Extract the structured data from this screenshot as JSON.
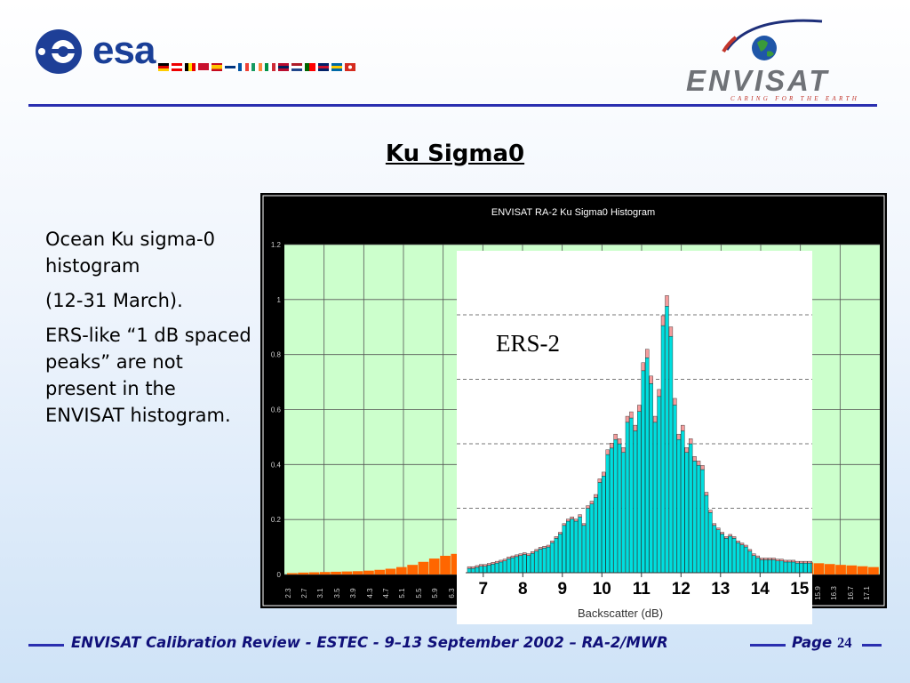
{
  "header": {
    "esa_logo_text": "esa",
    "envisat_logo_text": "ENVISAT",
    "envisat_tagline": "CARING FOR THE EARTH",
    "flags": [
      "germany-flag",
      "austria-flag",
      "belgium-flag",
      "denmark-flag",
      "spain-flag",
      "finland-flag",
      "france-flag",
      "ireland-flag",
      "italy-flag",
      "norway-flag",
      "netherlands-flag",
      "portugal-flag",
      "uk-flag",
      "sweden-flag",
      "switzerland-flag"
    ]
  },
  "slide": {
    "title": "Ku Sigma0",
    "paragraphs": [
      "Ocean Ku sigma-0 histogram",
      "(12-31 March).",
      "ERS-like “1 dB spaced peaks” are not present in the ENVISAT histogram."
    ]
  },
  "chart_data": [
    {
      "type": "bar",
      "title": "ENVISAT RA-2 Ku Sigma0 Histogram",
      "yticks": [
        "1.2",
        "1",
        "0.8",
        "0.6",
        "0.4",
        "0.2",
        "0"
      ],
      "ylim": [
        0,
        1.2
      ],
      "xtick_labels": [
        "2.3",
        "2.7",
        "3.1",
        "3.5",
        "3.9",
        "4.3",
        "4.7",
        "5.1",
        "5.5",
        "5.9",
        "6.3",
        "15.9",
        "16.3",
        "16.7",
        "17.1"
      ],
      "series": [
        {
          "bars_left": [
            0.005,
            0.007,
            0.008,
            0.009,
            0.01,
            0.011,
            0.012,
            0.014,
            0.017,
            0.021,
            0.027,
            0.035,
            0.046,
            0.058,
            0.068,
            0.075
          ],
          "bars_right": [
            0.085,
            0.08,
            0.076,
            0.072,
            0.068,
            0.064,
            0.061,
            0.057,
            0.053,
            0.05,
            0.047,
            0.044,
            0.041,
            0.038,
            0.035,
            0.033,
            0.03,
            0.027
          ]
        }
      ],
      "colors": {
        "background": "#000000",
        "plot": "#ccffcc",
        "bar": "#ff6600"
      },
      "grid": true
    },
    {
      "type": "bar",
      "label": "ERS-2",
      "xlabel": "Backscatter (dB)",
      "xticks": [
        "7",
        "8",
        "9",
        "10",
        "11",
        "12",
        "13",
        "14",
        "15"
      ],
      "xlim": [
        6.6,
        15.5
      ],
      "ylim": [
        0,
        1.2
      ],
      "x_start": 6.6,
      "x_step": 0.1,
      "values": [
        0.02,
        0.02,
        0.025,
        0.03,
        0.03,
        0.035,
        0.04,
        0.045,
        0.05,
        0.055,
        0.065,
        0.07,
        0.075,
        0.08,
        0.085,
        0.08,
        0.09,
        0.1,
        0.11,
        0.115,
        0.12,
        0.14,
        0.16,
        0.18,
        0.22,
        0.24,
        0.25,
        0.24,
        0.26,
        0.22,
        0.3,
        0.32,
        0.35,
        0.42,
        0.45,
        0.55,
        0.58,
        0.62,
        0.6,
        0.56,
        0.7,
        0.72,
        0.66,
        0.75,
        0.94,
        1.0,
        0.88,
        0.7,
        0.82,
        1.15,
        1.24,
        1.1,
        0.78,
        0.62,
        0.66,
        0.56,
        0.6,
        0.52,
        0.5,
        0.48,
        0.36,
        0.28,
        0.22,
        0.2,
        0.18,
        0.16,
        0.17,
        0.16,
        0.14,
        0.13,
        0.12,
        0.1,
        0.08,
        0.07,
        0.06,
        0.06,
        0.06,
        0.06,
        0.055,
        0.055,
        0.05,
        0.05,
        0.05,
        0.045,
        0.045,
        0.045,
        0.045,
        0.045,
        0.04
      ],
      "gridlines_y": [
        0.3,
        0.6,
        0.9,
        1.2
      ],
      "colors": {
        "bar": "#00dede",
        "bar_edge": "#1a4a4a",
        "cap": "#f49c9c"
      }
    }
  ],
  "footer": {
    "text": "ENVISAT Calibration Review - ESTEC - 9–13 September 2002 – RA-2/MWR",
    "page_label": "Page",
    "page_number": "24"
  }
}
